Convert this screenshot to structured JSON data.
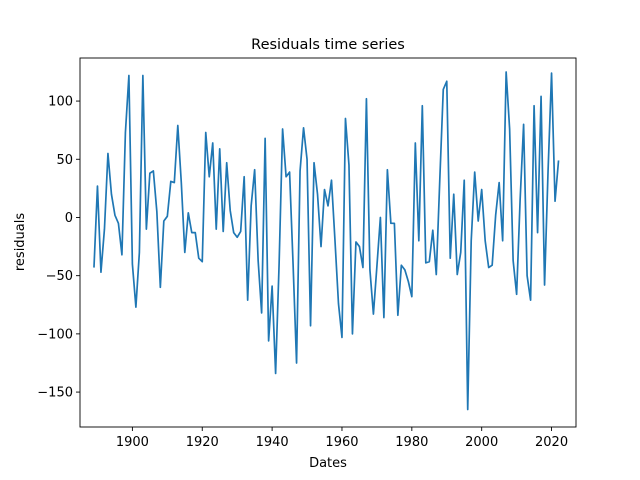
{
  "chart_data": {
    "type": "line",
    "title": "Residuals time series",
    "xlabel": "Dates",
    "ylabel": "residuals",
    "xlim": [
      1885,
      2027
    ],
    "ylim": [
      -180,
      137
    ],
    "xticks": [
      1900,
      1920,
      1940,
      1960,
      1980,
      2000,
      2020
    ],
    "yticks": [
      -150,
      -100,
      -50,
      0,
      50,
      100
    ],
    "ytick_labels": [
      "−150",
      "−100",
      "−50",
      "0",
      "50",
      "100"
    ],
    "grid": false,
    "color": "#1f77b4",
    "series": [
      {
        "x": [
          1889,
          1890,
          1891,
          1892,
          1893,
          1894,
          1895,
          1896,
          1897,
          1898,
          1899,
          1900,
          1901,
          1902,
          1903,
          1904,
          1905,
          1906,
          1907,
          1908,
          1909,
          1910,
          1911,
          1912,
          1913,
          1914,
          1915,
          1916,
          1917,
          1918,
          1919,
          1920,
          1921,
          1922,
          1923,
          1924,
          1925,
          1926,
          1927,
          1928,
          1929,
          1930,
          1931,
          1932,
          1933,
          1934,
          1935,
          1936,
          1937,
          1938,
          1939,
          1940,
          1941,
          1942,
          1943,
          1944,
          1945,
          1946,
          1947,
          1948,
          1949,
          1950,
          1951,
          1952,
          1953,
          1954,
          1955,
          1956,
          1957,
          1958,
          1959,
          1960,
          1961,
          1962,
          1963,
          1964,
          1965,
          1966,
          1967,
          1968,
          1969,
          1970,
          1971,
          1972,
          1973,
          1974,
          1975,
          1976,
          1977,
          1978,
          1979,
          1980,
          1981,
          1982,
          1983,
          1984,
          1985,
          1986,
          1987,
          1988,
          1989,
          1990,
          1991,
          1992,
          1993,
          1994,
          1995,
          1996,
          1997,
          1998,
          1999,
          2000,
          2001,
          2002,
          2003,
          2004,
          2005,
          2006,
          2007,
          2008,
          2009,
          2010,
          2011,
          2012,
          2013,
          2014,
          2015,
          2016,
          2017,
          2018,
          2019,
          2020,
          2021,
          2022
        ],
        "y": [
          -43,
          27,
          -47,
          -10,
          55,
          20,
          2,
          -5,
          -32,
          73,
          122,
          -40,
          -77,
          -30,
          122,
          -10,
          38,
          40,
          5,
          -60,
          -3,
          1,
          31,
          30,
          79,
          30,
          -30,
          4,
          -13,
          -13,
          -35,
          -38,
          73,
          35,
          64,
          -10,
          59,
          -12,
          47,
          6,
          -13,
          -17,
          -12,
          35,
          -71,
          10,
          41,
          -37,
          -82,
          68,
          -106,
          -59,
          -134,
          -40,
          76,
          35,
          39,
          -40,
          -125,
          40,
          77,
          50,
          -93,
          47,
          20,
          -25,
          24,
          10,
          32,
          -20,
          -74,
          -103,
          85,
          45,
          -100,
          -21,
          -25,
          -43,
          102,
          -45,
          -83,
          -42,
          0,
          -86,
          41,
          -5,
          -5,
          -84,
          -41,
          -45,
          -55,
          -68,
          64,
          -20,
          96,
          -39,
          -38,
          -11,
          -49,
          32,
          110,
          117,
          -35,
          20,
          -49,
          -30,
          32,
          -165,
          -20,
          39,
          -3,
          24,
          -20,
          -43,
          -41,
          2,
          30,
          -20,
          125,
          76,
          -37,
          -66,
          15,
          80,
          -50,
          -71,
          96,
          -13,
          104,
          -58,
          40,
          124,
          14,
          49
        ]
      }
    ]
  }
}
